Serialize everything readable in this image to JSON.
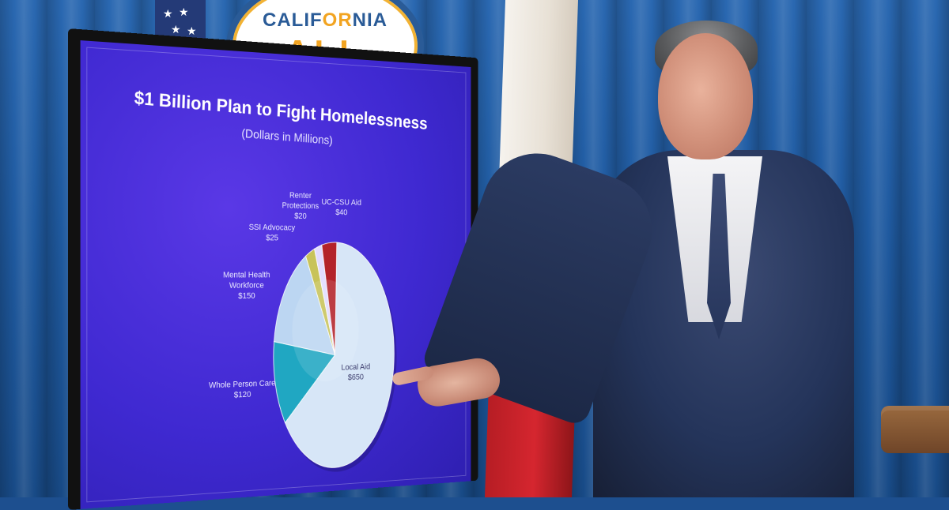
{
  "scene": {
    "background": "blue-curtain",
    "logo": {
      "text_left": "CALIF",
      "text_accent": "OR",
      "text_right": "NIA",
      "big_text": "ALL"
    }
  },
  "slide": {
    "title": "$1 Billion Plan to Fight Homelessness",
    "subtitle": "(Dollars in Millions)"
  },
  "chart_data": {
    "type": "pie",
    "title": "$1 Billion Plan to Fight Homelessness",
    "subtitle": "(Dollars in Millions)",
    "slices": [
      {
        "label": "Local Aid",
        "value": 650,
        "display": "$650",
        "color": "#d7e6f7"
      },
      {
        "label": "Whole Person Care",
        "value": 120,
        "display": "$120",
        "color": "#20a7c2"
      },
      {
        "label": "Mental Health Workforce",
        "value": 150,
        "display": "$150",
        "color": "#bcd6f2"
      },
      {
        "label": "SSI Advocacy",
        "value": 25,
        "display": "$25",
        "color": "#c8c35a"
      },
      {
        "label": "Renter Protections",
        "value": 20,
        "display": "$20",
        "color": "#e2dcff"
      },
      {
        "label": "UC-CSU Aid",
        "value": 40,
        "display": "$40",
        "color": "#b3232a"
      }
    ],
    "legend": "none"
  },
  "labels": {
    "uccsu_name": "UC-CSU Aid",
    "uccsu_amount": "$40",
    "renter_name": "Renter Protections",
    "renter_amount": "$20",
    "ssi_name": "SSI Advocacy",
    "ssi_amount": "$25",
    "mental_name": "Mental Health Workforce",
    "mental_amount": "$150",
    "whole_name": "Whole Person Care",
    "whole_amount": "$120",
    "local_name": "Local Aid",
    "local_amount": "$650"
  },
  "colors": {
    "screen": "#3f29d1",
    "curtain": "#1f5aa0",
    "logo_blue": "#2a5b97",
    "logo_gold": "#f2a421"
  }
}
